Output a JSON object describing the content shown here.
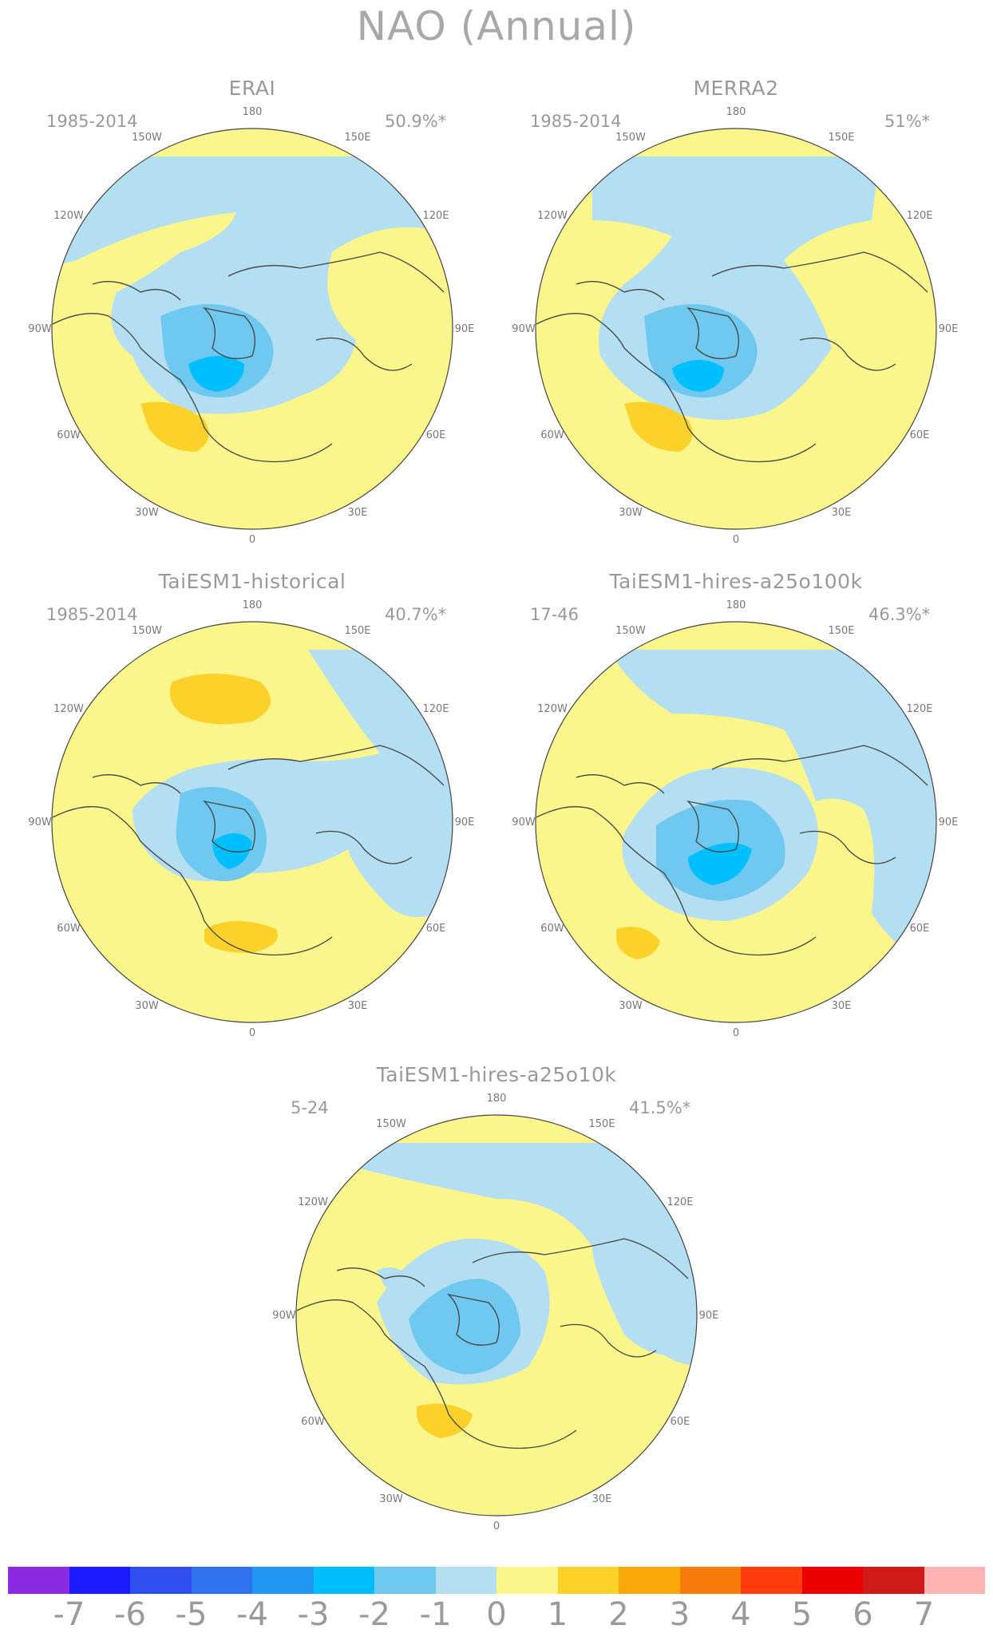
{
  "title": "NAO (Annual)",
  "lon_labels": [
    "180",
    "150E",
    "120E",
    "90E",
    "60E",
    "30E",
    "0",
    "30W",
    "60W",
    "90W",
    "120W",
    "150W"
  ],
  "panels": [
    {
      "name": "ERAI",
      "period": "1985-2014",
      "pct": "50.9%*"
    },
    {
      "name": "MERRA2",
      "period": "1985-2014",
      "pct": "51%*"
    },
    {
      "name": "TaiESM1-historical",
      "period": "1985-2014",
      "pct": "40.7%*"
    },
    {
      "name": "TaiESM1-hires-a25o100k",
      "period": "17-46",
      "pct": "46.3%*"
    },
    {
      "name": "TaiESM1-hires-a25o10k",
      "period": "5-24",
      "pct": "41.5%*"
    }
  ],
  "colorbar": {
    "colors": [
      "#8a2be2",
      "#1a1aff",
      "#2e4ef0",
      "#2f72ee",
      "#2196f3",
      "#00bfff",
      "#6fc8ef",
      "#b4def2",
      "#fbf68c",
      "#fcd22a",
      "#fba80a",
      "#f97b0c",
      "#ff3d0c",
      "#ee0000",
      "#d01919",
      "#ffb3b3"
    ],
    "labels": [
      "-7",
      "-6",
      "-5",
      "-4",
      "-3",
      "-2",
      "-1",
      "0",
      "1",
      "2",
      "3",
      "4",
      "5",
      "6",
      "7"
    ]
  },
  "colors": {
    "land_line": "#444444",
    "text": "#999999"
  }
}
